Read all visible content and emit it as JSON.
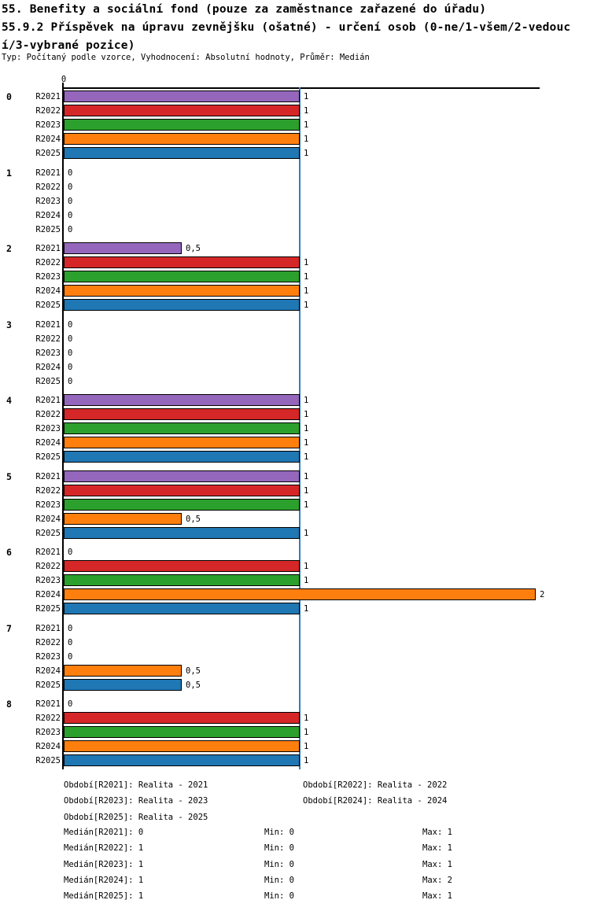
{
  "header": {
    "title_line1": "55. Benefity a sociální fond (pouze za zaměstnance zařazené do úřadu)",
    "title_line2": "55.9.2 Příspěvek na úpravu zevnějšku (ošatné) - určení osob (0-ne/1-všem/2-vedouc",
    "title_line3": "í/3-vybrané pozice)",
    "meta": "Typ: Počítaný podle vzorce, Vyhodnocení: Absolutní hodnoty, Průměr: Medián"
  },
  "chart_data": {
    "type": "bar",
    "orientation": "horizontal",
    "x_axis": {
      "ticks": [
        {
          "value": 0,
          "label": "0"
        }
      ],
      "reference_line_value": 1,
      "xlim": [
        0,
        2
      ],
      "grid": false
    },
    "series": [
      "R2021",
      "R2022",
      "R2023",
      "R2024",
      "R2025"
    ],
    "series_colors": {
      "R2021": "#9467bd",
      "R2022": "#d62728",
      "R2023": "#2ca02c",
      "R2024": "#ff7f0e",
      "R2025": "#1f77b4"
    },
    "reference_line_color": "#2d7fbb",
    "decimal_separator": ",",
    "groups": [
      {
        "label": "0",
        "values": [
          1,
          1,
          1,
          1,
          1
        ]
      },
      {
        "label": "1",
        "values": [
          0,
          0,
          0,
          0,
          0
        ]
      },
      {
        "label": "2",
        "values": [
          0.5,
          1,
          1,
          1,
          1
        ]
      },
      {
        "label": "3",
        "values": [
          0,
          0,
          0,
          0,
          0
        ]
      },
      {
        "label": "4",
        "values": [
          1,
          1,
          1,
          1,
          1
        ]
      },
      {
        "label": "5",
        "values": [
          1,
          1,
          1,
          0.5,
          1
        ]
      },
      {
        "label": "6",
        "values": [
          0,
          1,
          1,
          2,
          1
        ]
      },
      {
        "label": "7",
        "values": [
          0,
          0,
          0,
          0.5,
          0.5
        ]
      },
      {
        "label": "8",
        "values": [
          0,
          1,
          1,
          1,
          1
        ]
      }
    ]
  },
  "footer": {
    "periods": [
      {
        "label": "Období[R2021]:",
        "value": "Realita - 2021"
      },
      {
        "label": "Období[R2022]:",
        "value": "Realita - 2022"
      },
      {
        "label": "Období[R2023]:",
        "value": "Realita - 2023"
      },
      {
        "label": "Období[R2024]:",
        "value": "Realita - 2024"
      },
      {
        "label": "Období[R2025]:",
        "value": "Realita - 2025"
      }
    ],
    "stats": [
      {
        "median": "Medián[R2021]: 0",
        "min": "Min: 0",
        "max": "Max: 1"
      },
      {
        "median": "Medián[R2022]: 1",
        "min": "Min: 0",
        "max": "Max: 1"
      },
      {
        "median": "Medián[R2023]: 1",
        "min": "Min: 0",
        "max": "Max: 1"
      },
      {
        "median": "Medián[R2024]: 1",
        "min": "Min: 0",
        "max": "Max: 2"
      },
      {
        "median": "Medián[R2025]: 1",
        "min": "Min: 0",
        "max": "Max: 1"
      }
    ]
  }
}
